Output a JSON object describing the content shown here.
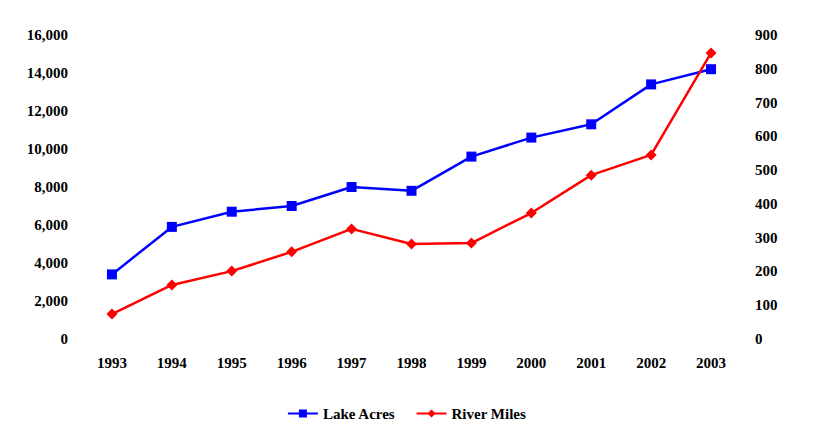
{
  "chart_data": {
    "type": "line",
    "categories": [
      "1993",
      "1994",
      "1995",
      "1996",
      "1997",
      "1998",
      "1999",
      "2000",
      "2001",
      "2002",
      "2003"
    ],
    "series": [
      {
        "name": "Lake Acres",
        "color": "#0000ff",
        "marker": "square",
        "values": [
          3400,
          5900,
          6700,
          7000,
          8000,
          7800,
          9600,
          10600,
          11300,
          13400,
          14200
        ]
      },
      {
        "name": "River Miles",
        "color": "#ff0000",
        "marker": "diamond",
        "axis": "y2",
        "values": [
          74,
          160,
          201,
          258,
          326,
          281,
          284,
          373,
          485,
          545,
          847
        ]
      }
    ],
    "ylim": [
      0,
      16000
    ],
    "yticks": [
      0,
      2000,
      4000,
      6000,
      8000,
      10000,
      12000,
      14000,
      16000
    ],
    "y2lim": [
      0,
      900
    ],
    "y2ticks": [
      0,
      100,
      200,
      300,
      400,
      500,
      600,
      700,
      800,
      900
    ],
    "grid": false,
    "legend": "bottom"
  }
}
